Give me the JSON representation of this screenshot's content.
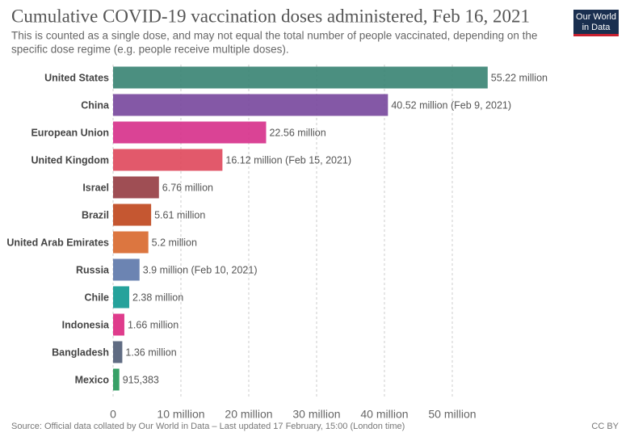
{
  "chart_data": {
    "type": "bar",
    "orientation": "horizontal",
    "title": "Cumulative COVID-19 vaccination doses administered, Feb 16, 2021",
    "subtitle": [
      "This is counted as a single dose, and may not equal the total number of people vaccinated, depending on the",
      "specific dose regime (e.g. people receive multiple doses)."
    ],
    "logo": [
      "Our World",
      "in Data"
    ],
    "categories": [
      "United States",
      "China",
      "European Union",
      "United Kingdom",
      "Israel",
      "Brazil",
      "United Arab Emirates",
      "Russia",
      "Chile",
      "Indonesia",
      "Bangladesh",
      "Mexico"
    ],
    "values": [
      55220000,
      40520000,
      22560000,
      16120000,
      6760000,
      5610000,
      5200000,
      3900000,
      2380000,
      1660000,
      1360000,
      915383
    ],
    "value_labels": [
      "55.22 million",
      "40.52 million (Feb 9, 2021)",
      "22.56 million",
      "16.12 million (Feb 15, 2021)",
      "6.76 million",
      "5.61 million",
      "5.2 million",
      "3.9 million (Feb 10, 2021)",
      "2.38 million",
      "1.66 million",
      "1.36 million",
      "915,383"
    ],
    "colors": [
      "#3c8575",
      "#7a4a9e",
      "#d7338c",
      "#e04b5e",
      "#973f45",
      "#c0491f",
      "#d96a30",
      "#5f79ab",
      "#149a93",
      "#dc2b82",
      "#536078",
      "#27985a"
    ],
    "xlim": [
      0,
      55220000
    ],
    "xticks": [
      0,
      {
        "value": 10000000,
        "label": "10 million"
      },
      {
        "value": 20000000,
        "label": "20 million"
      },
      {
        "value": 30000000,
        "label": "30 million"
      },
      {
        "value": 40000000,
        "label": "40 million"
      },
      {
        "value": 50000000,
        "label": "50 million"
      }
    ],
    "grid": true,
    "source": "Source: Official data collated by Our World in Data – Last updated 17 February, 15:00 (London time)",
    "license": "CC BY"
  }
}
